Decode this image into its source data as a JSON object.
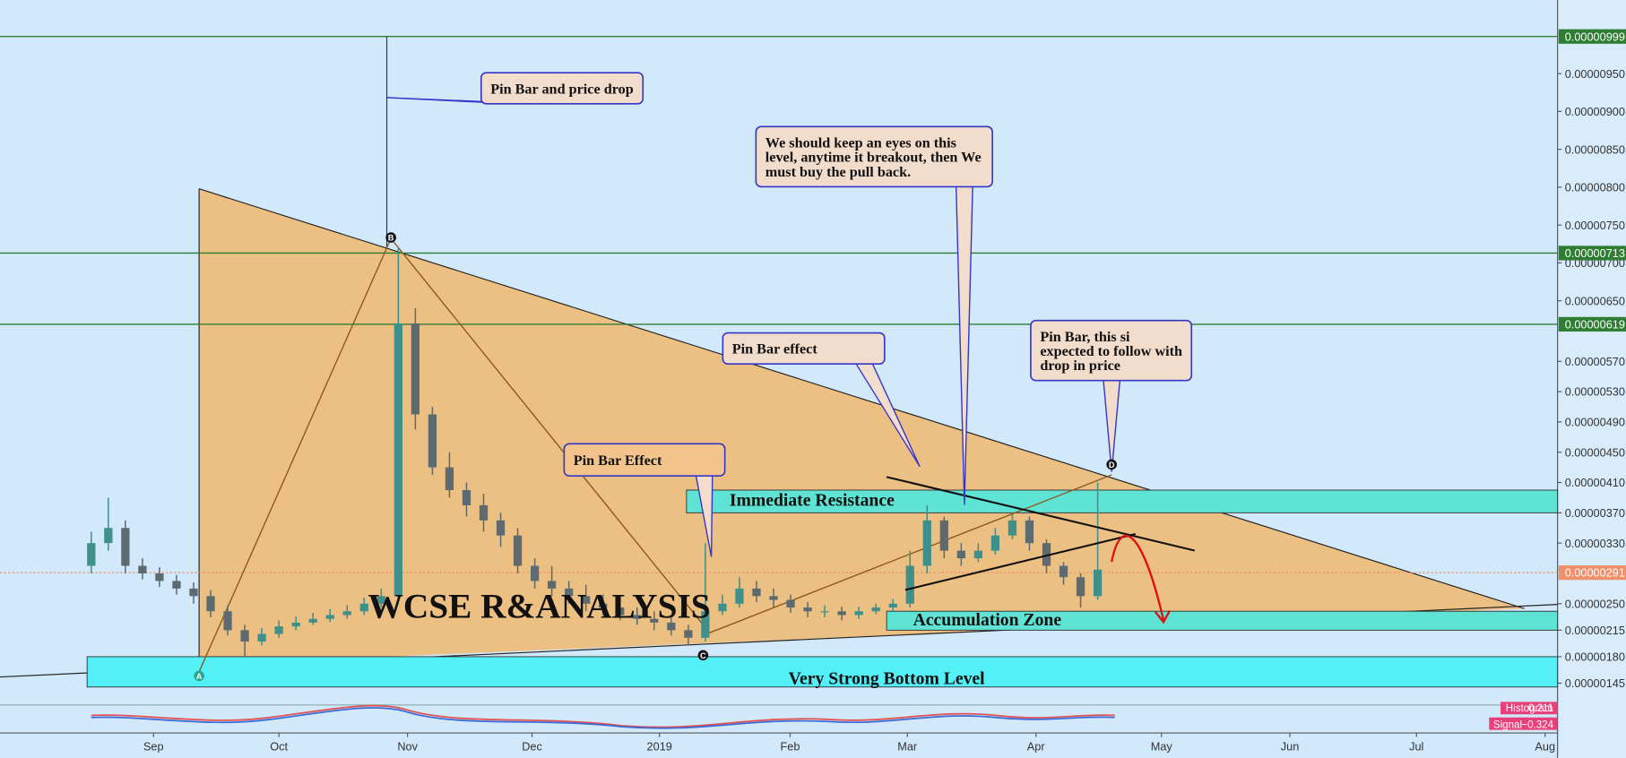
{
  "chart_data": {
    "type": "candlestick",
    "title": "WCSE R&ANALYSIS",
    "categories": [
      null,
      null,
      null,
      null,
      null,
      null,
      null,
      null,
      null,
      null,
      null,
      null,
      null,
      null,
      null,
      null,
      null,
      null,
      null,
      null,
      null,
      null,
      null,
      null,
      null,
      null,
      null,
      null,
      null,
      null,
      null,
      null,
      null,
      null,
      null,
      null,
      null,
      null,
      null,
      null,
      null,
      null,
      null,
      null,
      null,
      null,
      null,
      null,
      null,
      null,
      null,
      null,
      null,
      null,
      null,
      null,
      null,
      null,
      null,
      null
    ],
    "open": [
      3e-06,
      3.3e-06,
      3.5e-06,
      3e-06,
      2.9e-06,
      2.8e-06,
      2.7e-06,
      2.6e-06,
      2.4e-06,
      2.15e-06,
      2e-06,
      2.1e-06,
      2.2e-06,
      2.25e-06,
      2.3e-06,
      2.35e-06,
      2.4e-06,
      2.5e-06,
      2.6e-06,
      6.2e-06,
      5e-06,
      4.3e-06,
      4e-06,
      3.8e-06,
      3.6e-06,
      3.4e-06,
      3e-06,
      2.8e-06,
      2.7e-06,
      2.6e-06,
      2.5e-06,
      2.45e-06,
      2.35e-06,
      2.3e-06,
      2.25e-06,
      2.15e-06,
      2.05e-06,
      2.4e-06,
      2.5e-06,
      2.7e-06,
      2.6e-06,
      2.55e-06,
      2.45e-06,
      2.4e-06,
      2.4e-06,
      2.35e-06,
      2.4e-06,
      2.45e-06,
      2.5e-06,
      3e-06,
      3.6e-06,
      3.2e-06,
      3.1e-06,
      3.2e-06,
      3.4e-06,
      3.6e-06,
      3.3e-06,
      3e-06,
      2.85e-06,
      2.6e-06
    ],
    "high": [
      3.45e-06,
      3.9e-06,
      3.6e-06,
      3.1e-06,
      2.98e-06,
      2.88e-06,
      2.78e-06,
      2.68e-06,
      2.48e-06,
      2.22e-06,
      2.18e-06,
      2.28e-06,
      2.33e-06,
      2.38e-06,
      2.43e-06,
      2.48e-06,
      2.58e-06,
      2.7e-06,
      7.2e-06,
      6.4e-06,
      5.1e-06,
      4.5e-06,
      4.1e-06,
      3.95e-06,
      3.7e-06,
      3.5e-06,
      3.1e-06,
      3e-06,
      2.8e-06,
      2.75e-06,
      2.62e-06,
      2.55e-06,
      2.45e-06,
      2.4e-06,
      2.35e-06,
      2.22e-06,
      3.3e-06,
      2.62e-06,
      2.85e-06,
      2.8e-06,
      2.7e-06,
      2.62e-06,
      2.52e-06,
      2.48e-06,
      2.46e-06,
      2.46e-06,
      2.5e-06,
      2.56e-06,
      3.2e-06,
      3.8e-06,
      3.65e-06,
      3.3e-06,
      3.3e-06,
      3.5e-06,
      3.7e-06,
      3.65e-06,
      3.35e-06,
      3.05e-06,
      2.9e-06,
      4.1e-06
    ],
    "low": [
      2.9e-06,
      3.2e-06,
      2.9e-06,
      2.82e-06,
      2.72e-06,
      2.62e-06,
      2.5e-06,
      2.32e-06,
      2.08e-06,
      1.8e-06,
      1.95e-06,
      2.05e-06,
      2.15e-06,
      2.22e-06,
      2.26e-06,
      2.3e-06,
      2.35e-06,
      2.45e-06,
      2.5e-06,
      4.8e-06,
      4.2e-06,
      3.9e-06,
      3.65e-06,
      3.45e-06,
      3.25e-06,
      2.9e-06,
      2.7e-06,
      2.6e-06,
      2.5e-06,
      2.4e-06,
      2.35e-06,
      2.28e-06,
      2.22e-06,
      2.15e-06,
      2.08e-06,
      1.95e-06,
      2e-06,
      2.35e-06,
      2.45e-06,
      2.52e-06,
      2.45e-06,
      2.38e-06,
      2.32e-06,
      2.32e-06,
      2.28e-06,
      2.3e-06,
      2.36e-06,
      2.4e-06,
      2.45e-06,
      2.9e-06,
      3.1e-06,
      3e-06,
      3.05e-06,
      3.15e-06,
      3.35e-06,
      3.2e-06,
      2.9e-06,
      2.75e-06,
      2.45e-06,
      2.55e-06
    ],
    "close": [
      3.3e-06,
      3.5e-06,
      3e-06,
      2.9e-06,
      2.8e-06,
      2.7e-06,
      2.6e-06,
      2.4e-06,
      2.15e-06,
      2e-06,
      2.1e-06,
      2.2e-06,
      2.25e-06,
      2.3e-06,
      2.35e-06,
      2.4e-06,
      2.5e-06,
      2.6e-06,
      6.2e-06,
      5e-06,
      4.3e-06,
      4e-06,
      3.8e-06,
      3.6e-06,
      3.4e-06,
      3e-06,
      2.8e-06,
      2.7e-06,
      2.6e-06,
      2.5e-06,
      2.45e-06,
      2.35e-06,
      2.3e-06,
      2.25e-06,
      2.15e-06,
      2.05e-06,
      2.4e-06,
      2.5e-06,
      2.7e-06,
      2.6e-06,
      2.55e-06,
      2.45e-06,
      2.4e-06,
      2.4e-06,
      2.35e-06,
      2.4e-06,
      2.45e-06,
      2.5e-06,
      3e-06,
      3.6e-06,
      3.2e-06,
      3.1e-06,
      3.2e-06,
      3.4e-06,
      3.6e-06,
      3.3e-06,
      3e-06,
      2.85e-06,
      2.6e-06,
      2.95e-06
    ],
    "up_color": "#3f8f8a",
    "down_color": "#5d6b70",
    "xlim": [
      -5.35,
      85.96
    ],
    "xticks": [
      {
        "value": 3.65,
        "label": "Sep"
      },
      {
        "value": 11.0,
        "label": "Oct"
      },
      {
        "value": 18.54,
        "label": "Nov"
      },
      {
        "value": 25.84,
        "label": "Dec"
      },
      {
        "value": 33.31,
        "label": "2019"
      },
      {
        "value": 40.97,
        "label": "Feb"
      },
      {
        "value": 47.84,
        "label": "Mar"
      },
      {
        "value": 55.38,
        "label": "Apr"
      },
      {
        "value": 62.74,
        "label": "May"
      },
      {
        "value": 70.27,
        "label": "Jun"
      },
      {
        "value": 77.69,
        "label": "Jul"
      },
      {
        "value": 85.23,
        "label": "Aug"
      }
    ],
    "ylim": [
      8.2e-07,
      1.047e-05
    ],
    "yticks": [
      {
        "value": 9.5e-06,
        "label": "0.00000950"
      },
      {
        "value": 9e-06,
        "label": "0.00000900"
      },
      {
        "value": 8.5e-06,
        "label": "0.00000850"
      },
      {
        "value": 8e-06,
        "label": "0.00000800"
      },
      {
        "value": 7.5e-06,
        "label": "0.00000750"
      },
      {
        "value": 7e-06,
        "label": "0.00000700"
      },
      {
        "value": 6.5e-06,
        "label": "0.00000650"
      },
      {
        "value": 5.7e-06,
        "label": "0.00000570"
      },
      {
        "value": 5.3e-06,
        "label": "0.00000530"
      },
      {
        "value": 4.9e-06,
        "label": "0.00000490"
      },
      {
        "value": 4.5e-06,
        "label": "0.00000450"
      },
      {
        "value": 4.1e-06,
        "label": "0.00000410"
      },
      {
        "value": 3.7e-06,
        "label": "0.00000370"
      },
      {
        "value": 3.3e-06,
        "label": "0.00000330"
      },
      {
        "value": 2.5e-06,
        "label": "0.00000250"
      },
      {
        "value": 2.15e-06,
        "label": "0.00000215"
      },
      {
        "value": 1.8e-06,
        "label": "0.00000180"
      },
      {
        "value": 1.45e-06,
        "label": "0.00000145"
      }
    ],
    "levels": [
      {
        "value": 9.99e-06,
        "label": "0.00000999",
        "color": "#2e7d32"
      },
      {
        "value": 7.13e-06,
        "label": "0.00000713",
        "color": "#2e7d32"
      },
      {
        "value": 6.19e-06,
        "label": "0.00000619",
        "color": "#2e7d32"
      },
      {
        "value": 2.91e-06,
        "label": "0.00000291",
        "color": "#f0906a"
      }
    ],
    "zones": [
      {
        "label": "Immediate Resistance",
        "range": [
          3.7e-06,
          4e-06
        ]
      },
      {
        "label": "Accumulation Zone",
        "range": [
          2.15e-06,
          2.4e-06
        ]
      },
      {
        "label": "Very Strong Bottom Level",
        "range": [
          1.4e-06,
          1.8e-06
        ]
      }
    ],
    "annotations": [
      {
        "lines": [
          "Pin Bar and price drop"
        ]
      },
      {
        "lines": [
          "We should keep an eyes on this",
          "level, anytime it breakout, then We",
          "must buy the pull back."
        ]
      },
      {
        "lines": [
          "Pin Bar effect"
        ]
      },
      {
        "lines": [
          "Pin Bar, this si",
          "expected to follow with",
          "drop in price"
        ]
      },
      {
        "lines": [
          "Pin Bar Effect"
        ]
      }
    ],
    "points": [
      "A",
      "B",
      "C",
      "D"
    ],
    "indicator": {
      "histogram_label": "Histogram",
      "histogram": 0.211,
      "signal_label": "Signal",
      "signal": -0.324,
      "signal_value_label": "−0.324"
    }
  }
}
